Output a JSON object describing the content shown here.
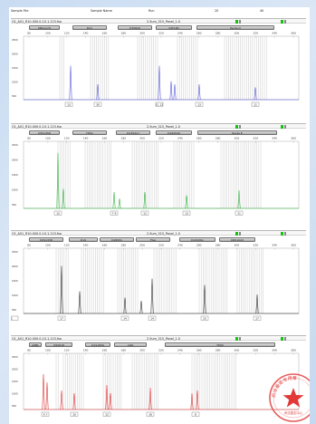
{
  "page_header": {
    "left": "Sample File",
    "mid1": "Sample Name",
    "mid2": "Run",
    "n1": "20",
    "n2": "40"
  },
  "panels": [
    {
      "id": "panel-1",
      "color": "#4a4ad6",
      "file_name": "O1_A01_R10-000.0-10.1.123.fsa",
      "dye_label": "2.5um_315_Panel_1.0",
      "markers": [
        "D8S1179",
        "D21",
        "D7S820",
        "CSF1PO",
        "Penta D"
      ],
      "tick_labels": [
        "80",
        "100",
        "120",
        "140",
        "160",
        "180",
        "200",
        "220",
        "240",
        "260",
        "280",
        "300",
        "320",
        "340",
        "360"
      ],
      "y_labels": [
        "2500",
        "2000",
        "1500",
        "1000",
        "500"
      ],
      "allele_labels": [
        "13",
        "30",
        "11 12",
        "13",
        "11"
      ]
    },
    {
      "id": "panel-2",
      "color": "#1fae2e",
      "file_name": "O1_A01_R10-000.0-10.1.123.fsa",
      "dye_label": "2.5um_315_Panel_1.0",
      "markers": [
        "D3S1358",
        "TH01",
        "D13S317",
        "D16S539",
        "Penta E"
      ],
      "tick_labels": [
        "80",
        "100",
        "120",
        "140",
        "160",
        "180",
        "200",
        "220",
        "240",
        "260",
        "280",
        "300",
        "320",
        "340",
        "360"
      ],
      "y_labels": [
        "2500",
        "2000",
        "1500",
        "1000",
        "500"
      ],
      "allele_labels": [
        "15",
        "7 9",
        "12",
        "13",
        "11"
      ]
    },
    {
      "id": "panel-3",
      "color": "#202020",
      "file_name": "O1_A01_R10-000.0-10.1.123.fsa",
      "dye_label": "2.5um_315_Panel_1.0",
      "markers": [
        "D2S1338",
        "D19",
        "D18S51",
        "FGA",
        "D12S391",
        "D6S1043"
      ],
      "tick_labels": [
        "80",
        "100",
        "120",
        "140",
        "160",
        "180",
        "200",
        "220",
        "240",
        "260",
        "280",
        "300",
        "320",
        "340",
        "360"
      ],
      "y_labels": [
        "2500",
        "2000",
        "1500",
        "1000",
        "500"
      ],
      "allele_labels": [
        "17",
        "14",
        "14",
        "23",
        "17",
        "11"
      ]
    },
    {
      "id": "panel-4",
      "color": "#dd2323",
      "file_name": "O1_A01_R10-000.0-10.1.123.fsa",
      "dye_label": "2.5um_315_Panel_1.0",
      "markers": [
        "AMEL",
        "D5S818",
        "D1S1656",
        "vWA",
        "TPOX"
      ],
      "tick_labels": [
        "80",
        "100",
        "120",
        "140",
        "160",
        "180",
        "200",
        "220",
        "240",
        "260",
        "280",
        "300",
        "320",
        "340",
        "360"
      ],
      "y_labels": [
        "2500",
        "2000",
        "1500",
        "1000",
        "500"
      ],
      "allele_labels": [
        "X Y",
        "10",
        "12",
        "16",
        "8"
      ]
    }
  ],
  "stamp": {
    "ring_text": "司法鉴定专用章",
    "bottom_text": "司法鉴定中心"
  }
}
